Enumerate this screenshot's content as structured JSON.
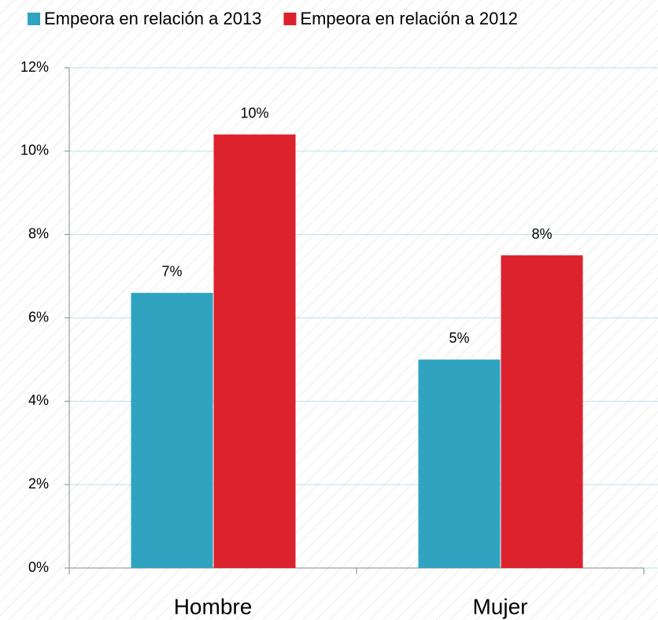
{
  "chart_data": {
    "type": "bar",
    "categories": [
      "Hombre",
      "Mujer"
    ],
    "series": [
      {
        "name": "Empeora en relación a 2013",
        "color": "#2fa3c0",
        "values": [
          6.6,
          5.0
        ],
        "value_labels": [
          "7%",
          "5%"
        ]
      },
      {
        "name": "Empeora en relación a 2012",
        "color": "#dc222c",
        "values": [
          10.4,
          7.5
        ],
        "value_labels": [
          "10%",
          "8%"
        ]
      }
    ],
    "ylim": [
      0,
      12
    ],
    "yticks": [
      {
        "value": 0,
        "label": "0%"
      },
      {
        "value": 2,
        "label": "2%"
      },
      {
        "value": 4,
        "label": "4%"
      },
      {
        "value": 6,
        "label": "6%"
      },
      {
        "value": 8,
        "label": "8%"
      },
      {
        "value": 10,
        "label": "10%"
      },
      {
        "value": 12,
        "label": "12%"
      }
    ],
    "grid": true,
    "legend": "top"
  }
}
